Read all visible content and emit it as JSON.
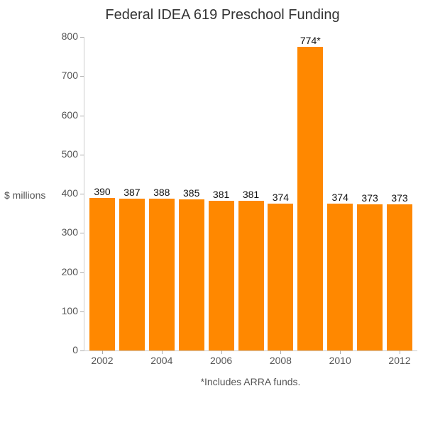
{
  "chart_data": {
    "type": "bar",
    "title": "Federal IDEA 619 Preschool Funding",
    "xlabel": "",
    "ylabel": "$ millions",
    "footnote": "*Includes ARRA funds.",
    "categories": [
      "2002",
      "2003",
      "2004",
      "2005",
      "2006",
      "2007",
      "2008",
      "2009",
      "2010",
      "2011",
      "2012"
    ],
    "values": [
      390,
      387,
      388,
      385,
      381,
      381,
      374,
      774,
      374,
      373,
      373
    ],
    "value_labels": [
      "390",
      "387",
      "388",
      "385",
      "381",
      "381",
      "374",
      "774*",
      "374",
      "373",
      "373"
    ],
    "ylim": [
      0,
      800
    ],
    "yticks": [
      0,
      100,
      200,
      300,
      400,
      500,
      600,
      700,
      800
    ],
    "xtick_labels": [
      "2002",
      "2004",
      "2006",
      "2008",
      "2010",
      "2012"
    ],
    "grid": false,
    "legend": null,
    "bar_color": "#ff8800"
  }
}
